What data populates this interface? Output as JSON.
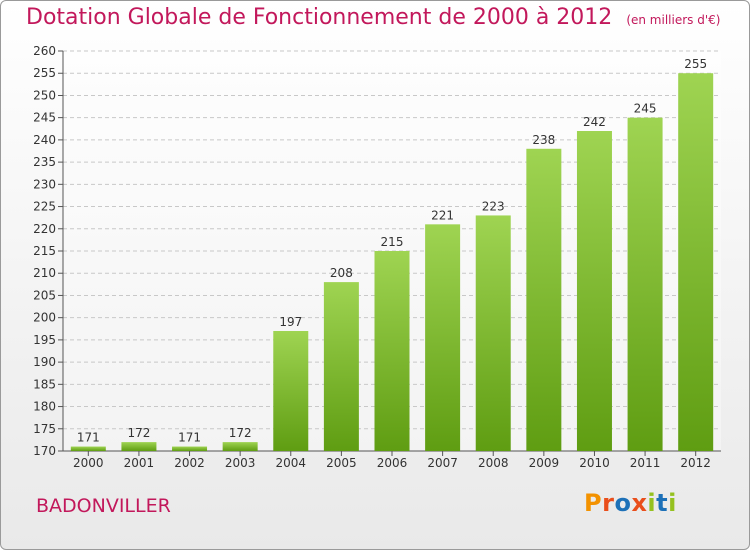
{
  "title": "Dotation Globale de Fonctionnement de 2000 à 2012",
  "unit_note": "(en milliers d'€)",
  "commune": "BADONVILLER",
  "logo": {
    "text": "Proxiti",
    "letter_colors": [
      "#f39200",
      "#e94e1b",
      "#1d71b8",
      "#e94e1b",
      "#95c11f",
      "#1d71b8",
      "#95c11f"
    ]
  },
  "colors": {
    "title": "#c2185b",
    "bar_top": "#9fd452",
    "bar_bottom": "#5f9d12",
    "grid": "#c8c8c8"
  },
  "chart_data": {
    "type": "bar",
    "title": "Dotation Globale de Fonctionnement de 2000 à 2012",
    "categories": [
      "2000",
      "2001",
      "2002",
      "2003",
      "2004",
      "2005",
      "2006",
      "2007",
      "2008",
      "2009",
      "2010",
      "2011",
      "2012"
    ],
    "values": [
      171,
      172,
      171,
      172,
      197,
      208,
      215,
      221,
      223,
      238,
      242,
      245,
      255
    ],
    "ylim": [
      170,
      260
    ],
    "y_ticks": [
      170,
      175,
      180,
      185,
      190,
      195,
      200,
      205,
      210,
      215,
      220,
      225,
      230,
      235,
      240,
      245,
      250,
      255,
      260
    ],
    "grid": true,
    "data_labels": true
  }
}
